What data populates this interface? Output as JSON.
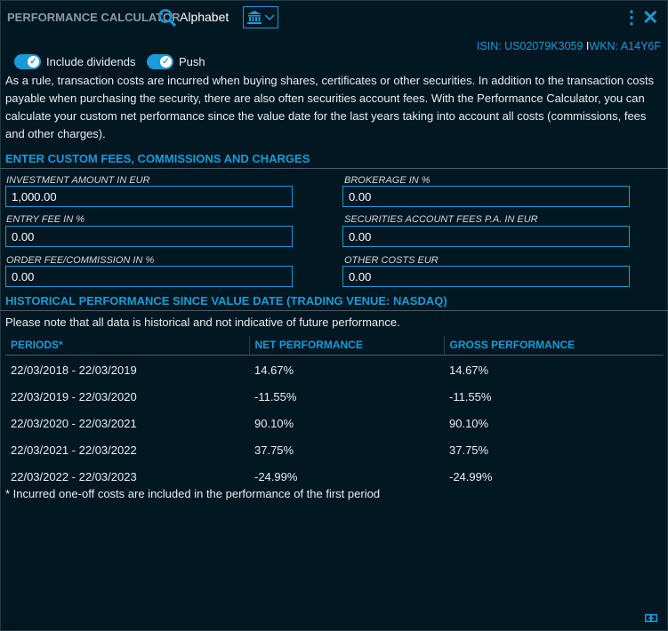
{
  "header": {
    "title": "PERFORMANCE CALCULATOR",
    "asset": "Alphabet",
    "icons": [
      "search-icon",
      "bank-icon",
      "chevron-down-icon",
      "kebab-icon",
      "close-icon"
    ]
  },
  "identifiers": {
    "isin": "ISIN: US02079K3059",
    "separator": "I",
    "wkn": "WKN: A14Y6F"
  },
  "toggles": [
    {
      "label": "Include dividends",
      "on": true
    },
    {
      "label": "Push",
      "on": true
    }
  ],
  "intro": "As a rule, transaction costs are incurred when buying shares, certificates or other securities. In addition to the transaction costs payable when purchasing the security, there are also often securities account fees. With the Performance Calculator, you can calculate your custom net performance since the value date for the last years taking into account all costs (commissions, fees and other charges).",
  "fees": {
    "heading": "ENTER CUSTOM FEES, COMMISSIONS AND CHARGES",
    "fields": [
      {
        "label": "INVESTMENT AMOUNT IN EUR",
        "value": "1,000.00"
      },
      {
        "label": "BROKERAGE IN %",
        "value": "0.00"
      },
      {
        "label": "ENTRY FEE IN %",
        "value": "0.00"
      },
      {
        "label": "SECURITIES ACCOUNT FEES P.A. IN EUR",
        "value": "0.00"
      },
      {
        "label": "ORDER FEE/COMMISSION IN %",
        "value": "0.00"
      },
      {
        "label": "OTHER COSTS EUR",
        "value": "0.00"
      }
    ]
  },
  "history": {
    "heading": "HISTORICAL PERFORMANCE SINCE VALUE DATE (TRADING VENUE: NASDAQ)",
    "note": "Please note that all data is historical and not indicative of future performance.",
    "columns": [
      "PERIODS*",
      "NET PERFORMANCE",
      "GROSS PERFORMANCE"
    ],
    "rows": [
      [
        "22/03/2018 - 22/03/2019",
        "14.67%",
        "14.67%"
      ],
      [
        "22/03/2019 - 22/03/2020",
        "-11.55%",
        "-11.55%"
      ],
      [
        "22/03/2020 - 22/03/2021",
        "90.10%",
        "90.10%"
      ],
      [
        "22/03/2021 - 22/03/2022",
        "37.75%",
        "37.75%"
      ],
      [
        "22/03/2022 - 22/03/2023",
        "-24.99%",
        "-24.99%"
      ]
    ],
    "footnote": "* Incurred one-off costs are included in the performance of the first period"
  },
  "colors": {
    "background": "#011722",
    "accent": "#1a9bd7"
  }
}
